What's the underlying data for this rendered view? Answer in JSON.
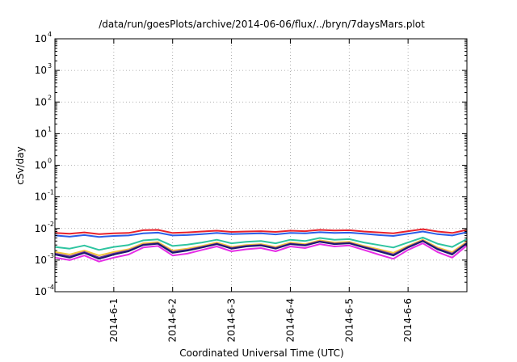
{
  "chart_data": {
    "type": "line",
    "title": "/data/run/goesPlots/archive/2014-06-06/flux/../bryn/7daysMars.plot",
    "xlabel": "Coordinated Universal Time (UTC)",
    "ylabel": "cSv/day",
    "yscale": "log",
    "ylim": [
      0.0001,
      10000
    ],
    "xlim": [
      "2014-05-31",
      "2014-06-07"
    ],
    "y_ticks": [
      {
        "base": "10",
        "exp": "-4"
      },
      {
        "base": "10",
        "exp": "-3"
      },
      {
        "base": "10",
        "exp": "-2"
      },
      {
        "base": "10",
        "exp": "-1"
      },
      {
        "base": "10",
        "exp": "0"
      },
      {
        "base": "10",
        "exp": "1"
      },
      {
        "base": "10",
        "exp": "2"
      },
      {
        "base": "10",
        "exp": "3"
      },
      {
        "base": "10",
        "exp": "4"
      }
    ],
    "x_ticks": [
      "2014-6-1",
      "2014-6-2",
      "2014-6-3",
      "2014-6-4",
      "2014-6-5",
      "2014-6-6"
    ],
    "grid": true,
    "x_points": [
      "2014-05-31 00:00",
      "2014-05-31 06:00",
      "2014-05-31 12:00",
      "2014-05-31 18:00",
      "2014-06-01 00:00",
      "2014-06-01 06:00",
      "2014-06-01 12:00",
      "2014-06-01 18:00",
      "2014-06-02 00:00",
      "2014-06-02 06:00",
      "2014-06-02 12:00",
      "2014-06-02 18:00",
      "2014-06-03 00:00",
      "2014-06-03 06:00",
      "2014-06-03 12:00",
      "2014-06-03 18:00",
      "2014-06-04 00:00",
      "2014-06-04 06:00",
      "2014-06-04 12:00",
      "2014-06-04 18:00",
      "2014-06-05 00:00",
      "2014-06-05 06:00",
      "2014-06-05 12:00",
      "2014-06-05 18:00",
      "2014-06-06 00:00",
      "2014-06-06 06:00",
      "2014-06-06 12:00",
      "2014-06-06 18:00",
      "2014-06-07 00:00"
    ],
    "series": [
      {
        "color": "#e8212b",
        "values": [
          0.0072,
          0.0068,
          0.0075,
          0.0066,
          0.007,
          0.0072,
          0.0088,
          0.009,
          0.0072,
          0.0075,
          0.008,
          0.0085,
          0.0078,
          0.008,
          0.0082,
          0.0078,
          0.0085,
          0.0082,
          0.009,
          0.0086,
          0.0088,
          0.008,
          0.0075,
          0.007,
          0.0082,
          0.0095,
          0.008,
          0.0072,
          0.009
        ]
      },
      {
        "color": "#2a5ee8",
        "values": [
          0.006,
          0.0055,
          0.0062,
          0.0054,
          0.0058,
          0.006,
          0.007,
          0.0074,
          0.006,
          0.0062,
          0.0066,
          0.0072,
          0.0066,
          0.0068,
          0.007,
          0.0065,
          0.0072,
          0.007,
          0.0076,
          0.0072,
          0.0074,
          0.0068,
          0.0062,
          0.0058,
          0.0068,
          0.008,
          0.0066,
          0.006,
          0.0076
        ]
      },
      {
        "color": "#2ec4a0",
        "values": [
          0.0026,
          0.0023,
          0.0029,
          0.0021,
          0.0026,
          0.003,
          0.0042,
          0.0045,
          0.0028,
          0.0031,
          0.0036,
          0.0044,
          0.0034,
          0.0038,
          0.004,
          0.0034,
          0.0044,
          0.004,
          0.005,
          0.0044,
          0.0046,
          0.0036,
          0.003,
          0.0025,
          0.0036,
          0.0052,
          0.0033,
          0.0026,
          0.0046
        ]
      },
      {
        "color": "#f2c33b",
        "values": [
          0.0018,
          0.0015,
          0.002,
          0.0014,
          0.0018,
          0.0022,
          0.0034,
          0.0037,
          0.002,
          0.0023,
          0.0028,
          0.0036,
          0.0026,
          0.003,
          0.0032,
          0.0026,
          0.0036,
          0.0032,
          0.0042,
          0.0036,
          0.0038,
          0.0028,
          0.0022,
          0.0017,
          0.0028,
          0.0044,
          0.0025,
          0.0018,
          0.0038
        ]
      },
      {
        "color": "#6b2fa0",
        "values": [
          0.0016,
          0.0013,
          0.0018,
          0.0012,
          0.0016,
          0.002,
          0.0031,
          0.0034,
          0.0018,
          0.0021,
          0.0026,
          0.0033,
          0.0024,
          0.0028,
          0.003,
          0.0024,
          0.0033,
          0.003,
          0.0039,
          0.0033,
          0.0035,
          0.0026,
          0.002,
          0.0015,
          0.0026,
          0.0041,
          0.0023,
          0.0016,
          0.0035
        ]
      },
      {
        "color": "#1a1a6e",
        "values": [
          0.0015,
          0.0012,
          0.0017,
          0.0011,
          0.0015,
          0.0019,
          0.003,
          0.0033,
          0.0017,
          0.002,
          0.0025,
          0.0032,
          0.0023,
          0.0027,
          0.0029,
          0.0023,
          0.0032,
          0.0029,
          0.0038,
          0.0032,
          0.0034,
          0.0025,
          0.0019,
          0.0014,
          0.0025,
          0.004,
          0.0022,
          0.0015,
          0.0034
        ]
      },
      {
        "color": "#e62ee6",
        "values": [
          0.0012,
          0.001,
          0.0014,
          0.0009,
          0.0012,
          0.0015,
          0.0025,
          0.0028,
          0.0014,
          0.0016,
          0.0021,
          0.0027,
          0.0019,
          0.0022,
          0.0024,
          0.0019,
          0.0027,
          0.0024,
          0.0032,
          0.0027,
          0.0029,
          0.0021,
          0.0015,
          0.0011,
          0.0021,
          0.0034,
          0.0018,
          0.0012,
          0.0029
        ]
      }
    ]
  }
}
